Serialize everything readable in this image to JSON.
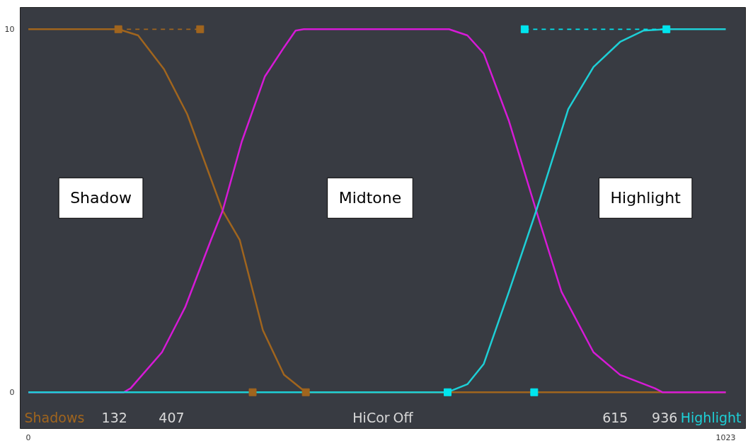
{
  "chart_data": {
    "type": "line",
    "xlim": [
      -12,
      1052
    ],
    "ylim": [
      -1.0,
      10.6
    ],
    "xticks": [
      0,
      1023
    ],
    "yticks": [
      0,
      10
    ],
    "grid": false,
    "marker": "none",
    "line_style": "solid",
    "series": [
      {
        "name": "Shadows",
        "color": "#a0651e",
        "x": [
          0,
          132,
          161,
          199,
          233,
          285,
          310,
          344,
          375,
          407,
          1023
        ],
        "values": [
          10,
          10,
          9.83,
          8.9,
          7.66,
          5.0,
          4.2,
          1.71,
          0.48,
          0,
          0
        ]
      },
      {
        "color": "#d61ad6",
        "x": [
          0,
          140,
          150,
          196,
          230,
          268,
          285,
          313,
          347,
          375,
          392,
          404,
          617,
          644,
          668,
          705,
          745,
          782,
          829,
          868,
          919,
          930,
          1023
        ],
        "values": [
          0,
          0,
          0.11,
          1.1,
          2.34,
          4.2,
          5.0,
          6.9,
          8.7,
          9.5,
          9.96,
          10,
          10,
          9.83,
          9.33,
          7.47,
          5.0,
          2.77,
          1.1,
          0.48,
          0.11,
          0,
          0
        ]
      },
      {
        "name": "Highlight",
        "color": "#1ecfd6",
        "x": [
          0,
          615,
          644,
          668,
          705,
          745,
          792,
          829,
          868,
          902,
          936,
          1023
        ],
        "values": [
          0,
          0,
          0.22,
          0.78,
          2.77,
          5.0,
          7.8,
          8.96,
          9.65,
          9.96,
          10,
          10
        ]
      },
      {
        "type": "line",
        "color": "#a0651e",
        "line_style": "dashed",
        "marker": "square",
        "x": [
          132,
          252
        ],
        "values": [
          10,
          10
        ]
      },
      {
        "type": "scatter",
        "color": "#a0651e",
        "marker": "square",
        "x": [
          329,
          407
        ],
        "values": [
          0,
          0
        ]
      },
      {
        "type": "line",
        "color": "#00e5ee",
        "line_style": "dashed",
        "marker": "square",
        "x": [
          728,
          936
        ],
        "values": [
          10,
          10
        ]
      },
      {
        "type": "scatter",
        "color": "#00e5ee",
        "marker": "square",
        "x": [
          615,
          742
        ],
        "values": [
          0,
          0
        ]
      }
    ],
    "annotations": [
      "Shadow",
      "Midtone",
      "Highlight",
      "132",
      "407",
      "HiCor",
      "Off",
      "615",
      "936"
    ]
  }
}
